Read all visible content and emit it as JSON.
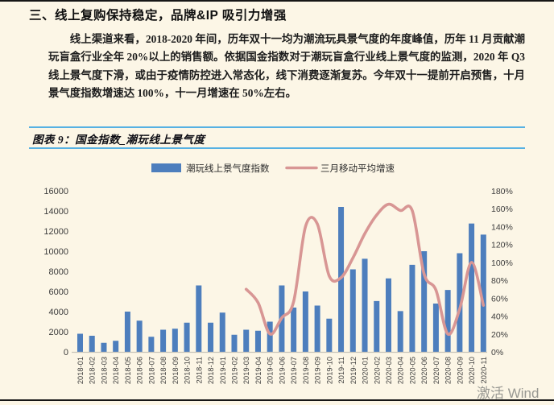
{
  "page": {
    "heading": "三、线上复购保持稳定，品牌&IP 吸引力增强",
    "paragraph": "线上渠道来看，2018-2020 年间，历年双十一均为潮流玩具景气度的年度峰值，历年 11 月贡献潮玩盲盒行业全年 20%以上的销售额。依据国金指数对于潮玩盲盒行业线上景气度的监测，2020 年 Q3 线上景气度下滑，或由于疫情防控进入常态化，线下消费逐渐复苏。今年双十一提前开启预售，十月景气度指数增速达 100%，十一月增速在 50%左右。",
    "figure_label": "图表 9：国金指数_潮玩线上景气度",
    "watermark": "激活 Wind"
  },
  "colors": {
    "background": "#fcf6e6",
    "rule_blue": "#56b1e3",
    "bar": "#4d7ebd",
    "line": "#d89694",
    "axis_text": "#3c3c3c",
    "axis_line": "#c6c2b8",
    "watermark": "#8e8e89"
  },
  "chart_data": {
    "type": "bar",
    "title": "国金指数_潮玩线上景气度",
    "legend_position": "top",
    "grid": false,
    "categories": [
      "2018-01",
      "2018-02",
      "2018-03",
      "2018-04",
      "2018-05",
      "2018-06",
      "2018-07",
      "2018-08",
      "2018-09",
      "2018-10",
      "2018-11",
      "2018-12",
      "2019-01",
      "2019-02",
      "2019-03",
      "2019-04",
      "2019-05",
      "2019-06",
      "2019-07",
      "2019-08",
      "2019-09",
      "2019-10",
      "2019-11",
      "2019-12",
      "2020-01",
      "2020-02",
      "2020-03",
      "2020-04",
      "2020-05",
      "2020-06",
      "2020-07",
      "2020-08",
      "2020-09",
      "2020-10",
      "2020-11"
    ],
    "series": [
      {
        "name": "潮玩线上景气度指数",
        "type": "bar",
        "yaxis": "left",
        "values": [
          1800,
          1600,
          900,
          1100,
          4000,
          3100,
          1500,
          2200,
          2300,
          2900,
          6600,
          2900,
          3900,
          1700,
          2200,
          2100,
          3000,
          6600,
          4400,
          6000,
          4600,
          3300,
          14400,
          8200,
          9250,
          5050,
          7300,
          4050,
          8650,
          10000,
          4800,
          6150,
          9800,
          12750,
          11650
        ]
      },
      {
        "name": "三月移动平均增速",
        "type": "line",
        "yaxis": "right",
        "unit": "%",
        "values": [
          null,
          null,
          null,
          null,
          null,
          null,
          null,
          null,
          null,
          null,
          null,
          null,
          null,
          null,
          70,
          55,
          20,
          38,
          56,
          140,
          143,
          85,
          83,
          105,
          132,
          153,
          165,
          158,
          158,
          87,
          69,
          20,
          48,
          100,
          52
        ]
      }
    ],
    "left_axis": {
      "min": 0,
      "max": 16000,
      "step": 2000,
      "ticks": [
        "0",
        "2000",
        "4000",
        "6000",
        "8000",
        "10000",
        "12000",
        "14000",
        "16000"
      ]
    },
    "right_axis": {
      "min": 0,
      "max": 180,
      "step": 20,
      "format": "percent",
      "ticks": [
        "0%",
        "20%",
        "40%",
        "60%",
        "80%",
        "100%",
        "120%",
        "140%",
        "160%",
        "180%"
      ]
    }
  }
}
